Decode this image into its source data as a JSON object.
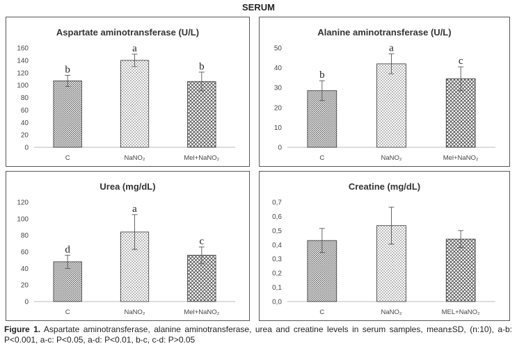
{
  "figure_title": "SERUM",
  "caption": {
    "label": "Figure 1.",
    "text": " Aspartate aminotransferase, alanine aminotransferase, urea and creatine levels in serum samples, mean±SD, (n:10), a-b: P<0.001, a-c: P<0.05, a-d: P<0.01, b-c, c-d: P>0.05"
  },
  "chart_data": [
    {
      "type": "bar",
      "title": "Aspartate aminotransferase (U/L)",
      "categories": [
        "C",
        "NaNO₂",
        "Mel+NaNO₂"
      ],
      "values": [
        107,
        140,
        106
      ],
      "errors": [
        9,
        10,
        15
      ],
      "letters": [
        "b",
        "a",
        "b"
      ],
      "ylim": [
        0,
        160
      ],
      "yticks": [
        0,
        20,
        40,
        60,
        80,
        100,
        120,
        140,
        160
      ],
      "ytick_labels": [
        "0",
        "20",
        "40",
        "60",
        "80",
        "100",
        "120",
        "140",
        "160"
      ],
      "grid": false
    },
    {
      "type": "bar",
      "title": "Alanine aminotransferase (U/L)",
      "categories": [
        "C",
        "NaNO₂",
        "Mel+NaNO₂"
      ],
      "values": [
        28.5,
        42,
        34.5
      ],
      "errors": [
        5,
        5,
        6
      ],
      "letters": [
        "b",
        "a",
        "c"
      ],
      "ylim": [
        0,
        50
      ],
      "yticks": [
        0,
        10,
        20,
        30,
        40,
        50
      ],
      "ytick_labels": [
        "0",
        "10",
        "20",
        "30",
        "40",
        "50"
      ],
      "grid": false
    },
    {
      "type": "bar",
      "title": "Urea (mg/dL)",
      "categories": [
        "C",
        "NaNO₂",
        "Mel+NaNO₂"
      ],
      "values": [
        48,
        84,
        56
      ],
      "errors": [
        8,
        21,
        10
      ],
      "letters": [
        "d",
        "a",
        "c"
      ],
      "ylim": [
        0,
        120
      ],
      "yticks": [
        0,
        20,
        40,
        60,
        80,
        100,
        120
      ],
      "ytick_labels": [
        "0",
        "20",
        "40",
        "60",
        "80",
        "100",
        "120"
      ],
      "grid": false
    },
    {
      "type": "bar",
      "title": "Creatine (mg/dL)",
      "categories": [
        "C",
        "NaNO₂",
        "MEL+NaNO₂"
      ],
      "values": [
        0.43,
        0.535,
        0.44
      ],
      "errors": [
        0.085,
        0.13,
        0.06
      ],
      "letters": [
        "",
        "",
        ""
      ],
      "ylim": [
        0,
        0.7
      ],
      "yticks": [
        0,
        0.1,
        0.2,
        0.3,
        0.4,
        0.5,
        0.6,
        0.7
      ],
      "ytick_labels": [
        "0,0",
        "0,1",
        "0,2",
        "0,3",
        "0,4",
        "0,5",
        "0,6",
        "0,7"
      ],
      "grid": false
    }
  ]
}
